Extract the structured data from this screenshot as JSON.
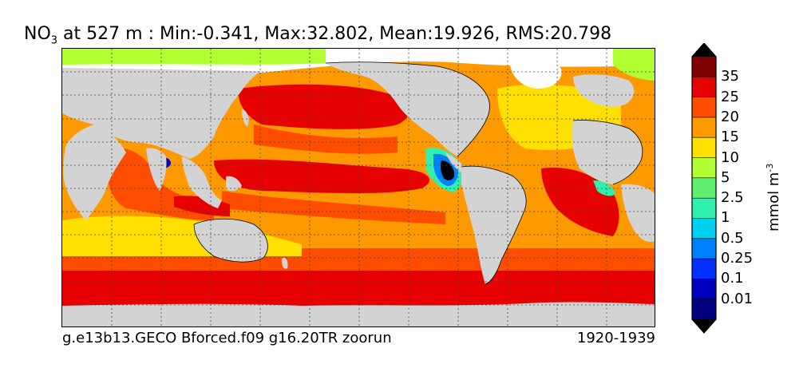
{
  "title": {
    "variable": "NO",
    "subscript": "3",
    "rest": " at 527 m : Min:-0.341, Max:32.802, Mean:19.926, RMS:20.798"
  },
  "footer": {
    "run": "g.e13b13.GECO Bforced.f09 g16.20TR zoorun",
    "years": "1920-1939"
  },
  "colorbar": {
    "units_base": "mmol m",
    "units_exp": "-3",
    "labels": [
      "35",
      "25",
      "20",
      "15",
      "10",
      "5",
      "2.5",
      "1",
      "0.5",
      "0.25",
      "0.1",
      "0.01"
    ],
    "colors_top_to_bottom": [
      "#7f0000",
      "#e60000",
      "#ff4d00",
      "#ff9900",
      "#ffe000",
      "#b0ff30",
      "#60f070",
      "#30f0b0",
      "#00d0f0",
      "#0080ff",
      "#0030ff",
      "#0000c0",
      "#000080"
    ],
    "over_color": "#000000",
    "under_color": "#000000"
  },
  "palette": {
    "land": "#d3d3d3",
    "ice": "#ffffff",
    "grid": "#444444"
  }
}
